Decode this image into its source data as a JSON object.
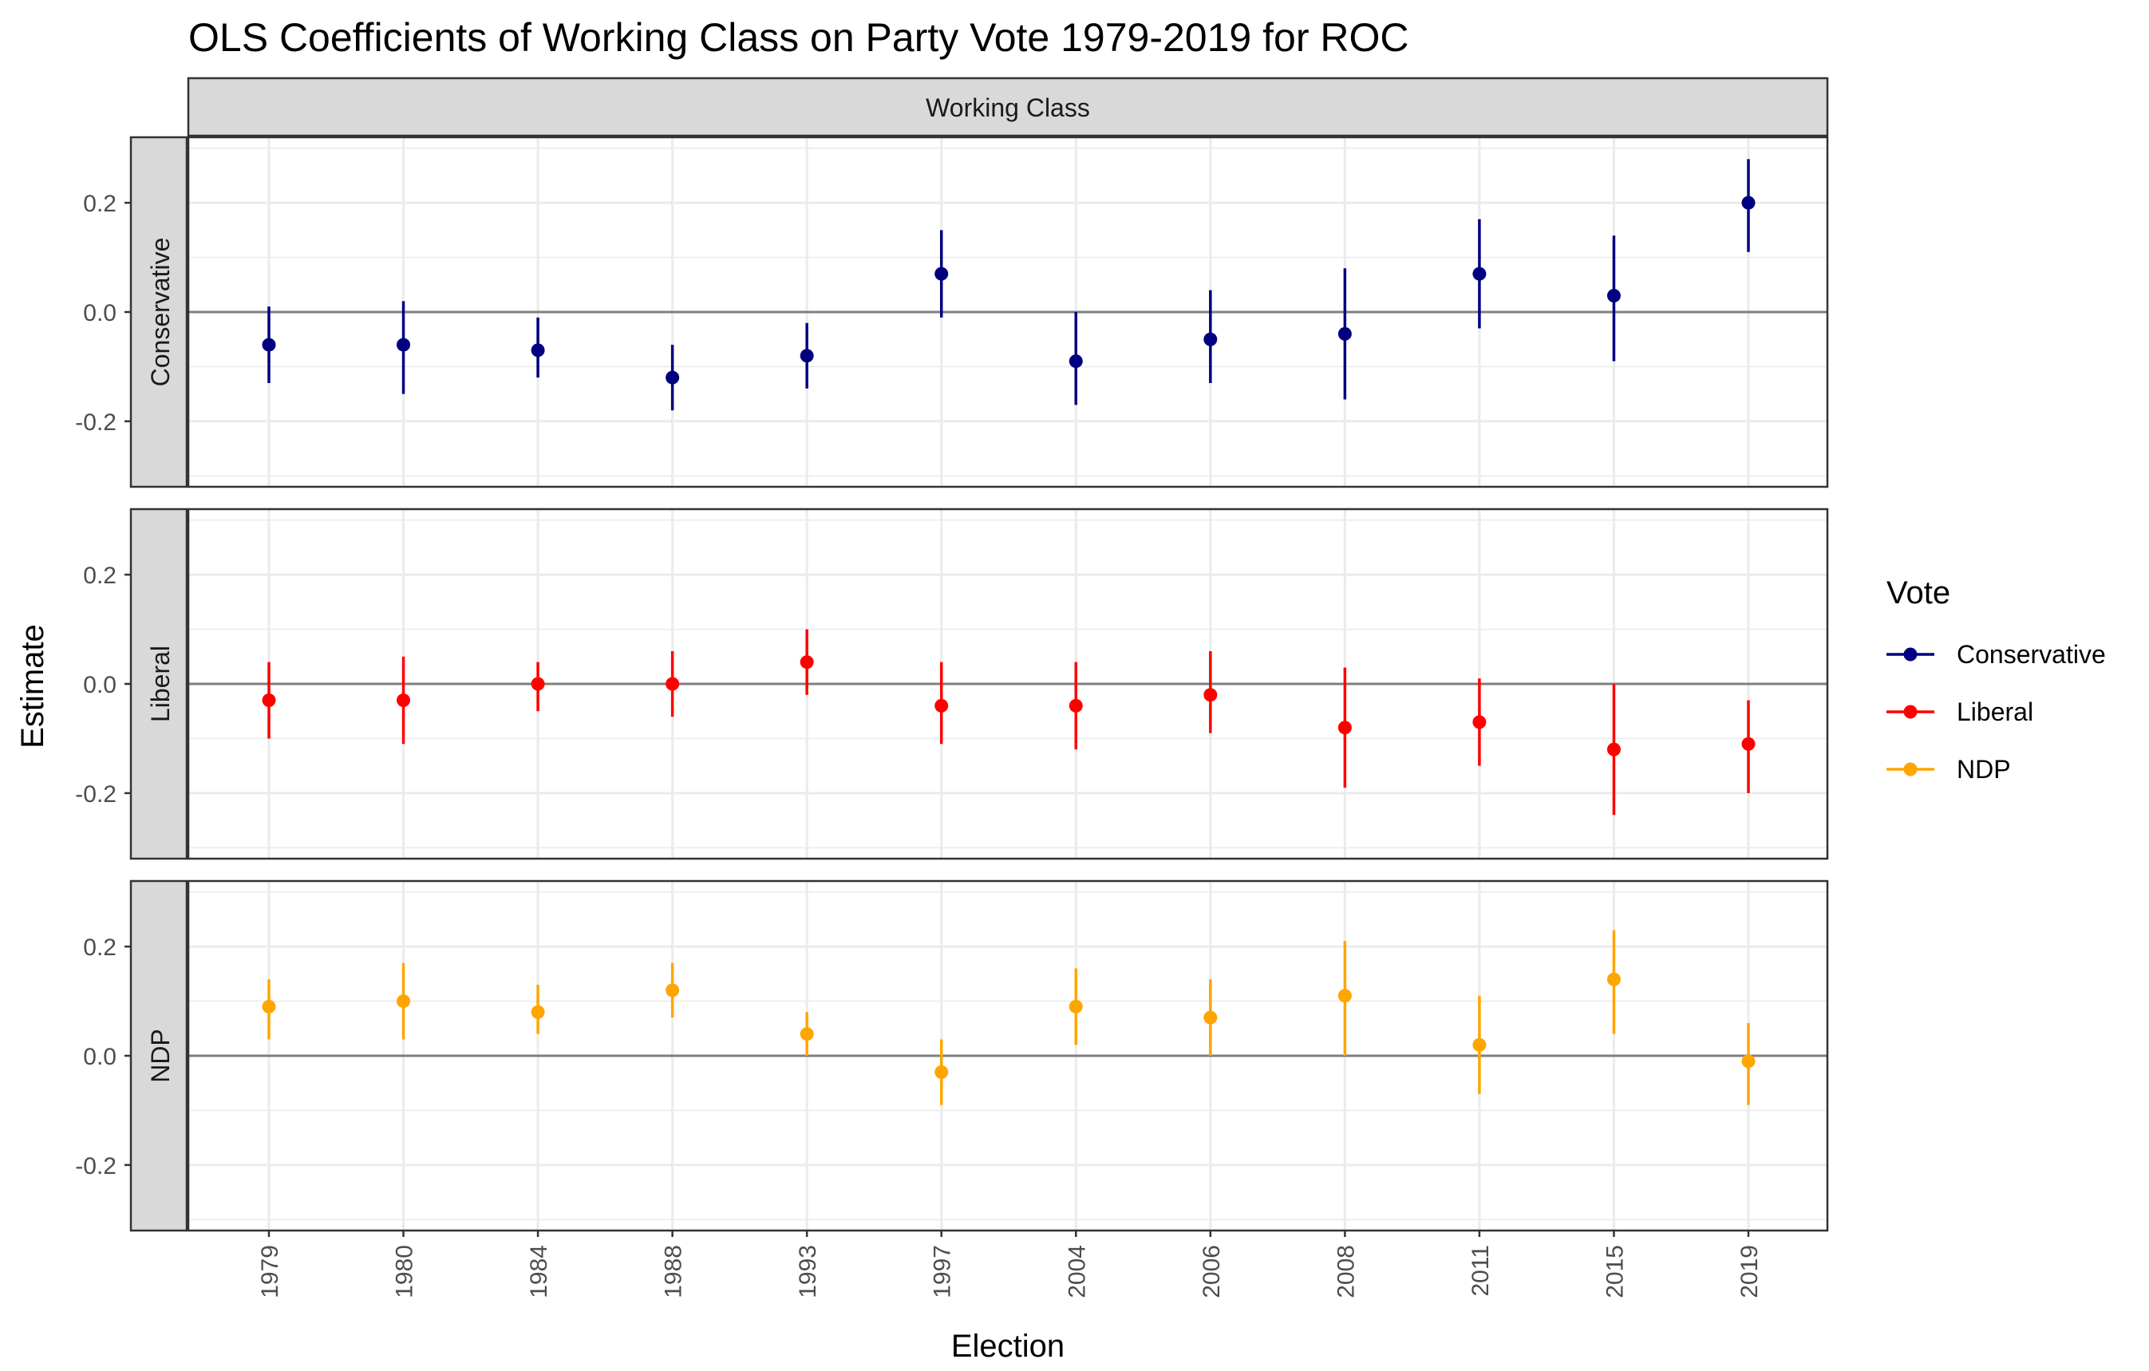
{
  "chart_data": {
    "type": "scatter",
    "title": "OLS Coefficients of Working Class on Party Vote 1979-2019 for ROC",
    "column_strip": "Working Class",
    "xlabel": "Election",
    "ylabel": "Estimate",
    "categories": [
      "1979",
      "1980",
      "1984",
      "1988",
      "1993",
      "1997",
      "2004",
      "2006",
      "2008",
      "2011",
      "2015",
      "2019"
    ],
    "ylim": [
      -0.32,
      0.32
    ],
    "yticks": [
      -0.2,
      0.0,
      0.2
    ],
    "ytick_labels": [
      "-0.2",
      "0.0",
      "0.2"
    ],
    "reference_line": 0,
    "grid": true,
    "legend": {
      "title": "Vote",
      "position": "right",
      "entries": [
        "Conservative",
        "Liberal",
        "NDP"
      ]
    },
    "series": [
      {
        "name": "Conservative",
        "color": "#000080",
        "estimate": [
          -0.06,
          -0.06,
          -0.07,
          -0.12,
          -0.08,
          0.07,
          -0.09,
          -0.05,
          -0.04,
          0.07,
          0.03,
          0.2
        ],
        "lower": [
          -0.13,
          -0.15,
          -0.12,
          -0.18,
          -0.14,
          -0.01,
          -0.17,
          -0.13,
          -0.16,
          -0.03,
          -0.09,
          0.11
        ],
        "upper": [
          0.01,
          0.02,
          -0.01,
          -0.06,
          -0.02,
          0.15,
          0.0,
          0.04,
          0.08,
          0.17,
          0.14,
          0.28
        ]
      },
      {
        "name": "Liberal",
        "color": "#ff0000",
        "estimate": [
          -0.03,
          -0.03,
          0.0,
          0.0,
          0.04,
          -0.04,
          -0.04,
          -0.02,
          -0.08,
          -0.07,
          -0.12,
          -0.11
        ],
        "lower": [
          -0.1,
          -0.11,
          -0.05,
          -0.06,
          -0.02,
          -0.11,
          -0.12,
          -0.09,
          -0.19,
          -0.15,
          -0.24,
          -0.2
        ],
        "upper": [
          0.04,
          0.05,
          0.04,
          0.06,
          0.1,
          0.04,
          0.04,
          0.06,
          0.03,
          0.01,
          0.0,
          -0.03
        ]
      },
      {
        "name": "NDP",
        "color": "#ffa500",
        "estimate": [
          0.09,
          0.1,
          0.08,
          0.12,
          0.04,
          -0.03,
          0.09,
          0.07,
          0.11,
          0.02,
          0.14,
          -0.01
        ],
        "lower": [
          0.03,
          0.03,
          0.04,
          0.07,
          0.0,
          -0.09,
          0.02,
          0.0,
          0.0,
          -0.07,
          0.04,
          -0.09
        ],
        "upper": [
          0.14,
          0.17,
          0.13,
          0.17,
          0.08,
          0.03,
          0.16,
          0.14,
          0.21,
          0.11,
          0.23,
          0.06
        ]
      }
    ]
  }
}
